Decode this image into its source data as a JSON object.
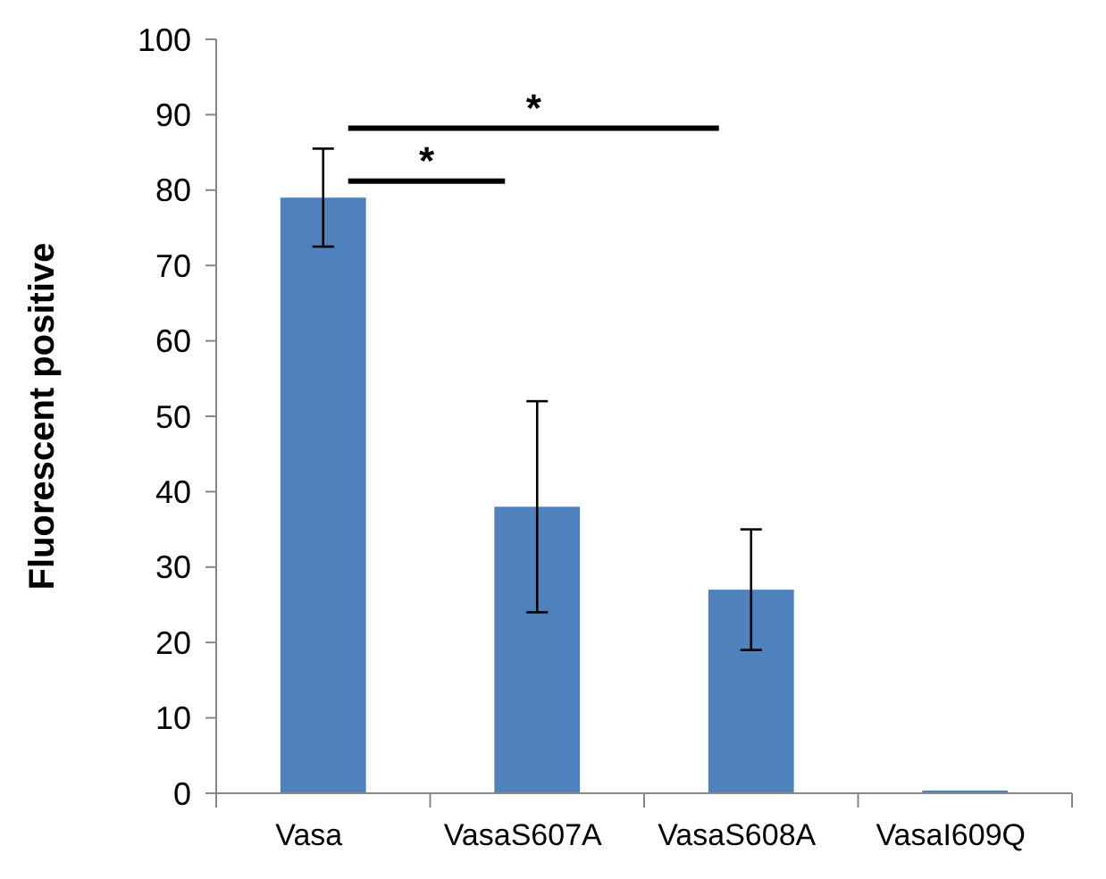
{
  "chart_data": {
    "type": "bar",
    "ylabel": "Fluorescent positive",
    "categories": [
      "Vasa",
      "VasaS607A",
      "VasaS608A",
      "VasaI609Q"
    ],
    "values": [
      79,
      38,
      27,
      0
    ],
    "errors": [
      [
        72.5,
        85.5
      ],
      [
        24,
        52
      ],
      [
        19,
        35
      ],
      null
    ],
    "color": "#4f81bd",
    "ylim": [
      0,
      100
    ],
    "yticks": [
      0,
      10,
      20,
      30,
      40,
      50,
      60,
      70,
      80,
      90,
      100
    ],
    "annotations": [
      "*",
      "*"
    ]
  }
}
